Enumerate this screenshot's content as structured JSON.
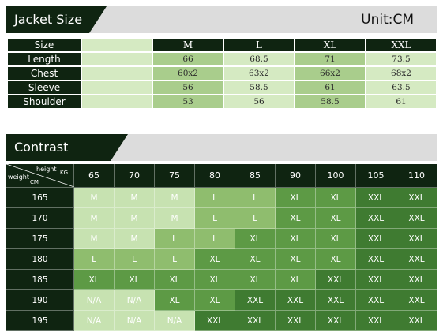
{
  "jacket": {
    "title": "Jacket Size",
    "unit": "Unit:CM",
    "header_label": "Size",
    "sizes": [
      "M",
      "L",
      "XL",
      "XXL"
    ],
    "rows": [
      {
        "label": "Length",
        "values": [
          "66",
          "68.5",
          "71",
          "73.5"
        ]
      },
      {
        "label": "Chest",
        "values": [
          "60x2",
          "63x2",
          "66x2",
          "68x2"
        ]
      },
      {
        "label": "Sleeve",
        "values": [
          "56",
          "58.5",
          "61",
          "63.5"
        ]
      },
      {
        "label": "Shoulder",
        "values": [
          "53",
          "56",
          "58.5",
          "61"
        ]
      }
    ]
  },
  "contrast": {
    "title": "Contrast",
    "corner": {
      "top_label": "height",
      "top_unit": "KG",
      "bottom_label": "weight",
      "bottom_unit": "CM"
    },
    "columns": [
      "65",
      "70",
      "75",
      "80",
      "85",
      "90",
      "100",
      "105",
      "110"
    ],
    "rows": [
      {
        "label": "165",
        "cells": [
          "M",
          "M",
          "M",
          "L",
          "L",
          "XL",
          "XL",
          "XXL",
          "XXL"
        ]
      },
      {
        "label": "170",
        "cells": [
          "M",
          "M",
          "M",
          "L",
          "L",
          "XL",
          "XL",
          "XXL",
          "XXL"
        ]
      },
      {
        "label": "175",
        "cells": [
          "M",
          "M",
          "L",
          "L",
          "XL",
          "XL",
          "XL",
          "XXL",
          "XXL"
        ]
      },
      {
        "label": "180",
        "cells": [
          "L",
          "L",
          "L",
          "XL",
          "XL",
          "XL",
          "XL",
          "XXL",
          "XXL"
        ]
      },
      {
        "label": "185",
        "cells": [
          "XL",
          "XL",
          "XL",
          "XL",
          "XL",
          "XL",
          "XXL",
          "XXL",
          "XXL"
        ]
      },
      {
        "label": "190",
        "cells": [
          "N/A",
          "N/A",
          "XL",
          "XL",
          "XXL",
          "XXL",
          "XXL",
          "XXL",
          "XXL"
        ]
      },
      {
        "label": "195",
        "cells": [
          "N/A",
          "N/A",
          "N/A",
          "XXL",
          "XXL",
          "XXL",
          "XXL",
          "XXL",
          "XXL"
        ]
      }
    ]
  },
  "colors": {
    "dark": "#0f2411",
    "light_green": "#d5eac2",
    "mid_green": "#a9cd8c",
    "size_M": "#c7e2b1",
    "size_L": "#8fbd6e",
    "size_XL": "#5d9a45",
    "size_XXL": "#3f7b31"
  }
}
